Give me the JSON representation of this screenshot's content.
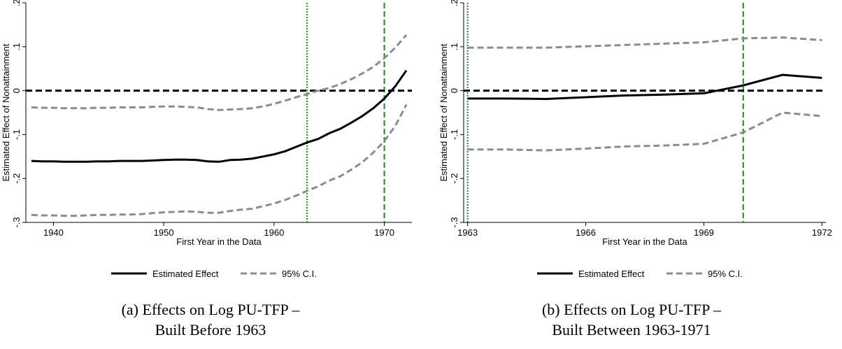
{
  "chart_data": [
    {
      "type": "line",
      "title": "(a) Effects on Log PU-TFP –",
      "subtitle": "Built Before 1963",
      "xlabel": "First Year in the Data",
      "ylabel": "Estimated Effect of Nonattainment",
      "xlim": [
        1937.5,
        1972.5
      ],
      "ylim": [
        -0.3,
        0.2
      ],
      "xticks": [
        1940,
        1950,
        1960,
        1970
      ],
      "xtick_labels": [
        "1940",
        "1950",
        "1960",
        "1970"
      ],
      "yticks": [
        -0.3,
        -0.2,
        -0.1,
        0,
        0.1,
        0.2
      ],
      "ytick_labels": [
        "-.3",
        "-.2",
        "-.1",
        "0",
        ".1",
        ".2"
      ],
      "reference_lines": {
        "horizontal_dashed_black": 0,
        "vertical_dotted_green": 1963,
        "vertical_dashed_green": 1970
      },
      "legend": [
        "Estimated Effect",
        "95% C.I."
      ],
      "legend_position": "bottom",
      "x": [
        1938,
        1939,
        1940,
        1941,
        1942,
        1943,
        1944,
        1945,
        1946,
        1947,
        1948,
        1949,
        1950,
        1951,
        1952,
        1953,
        1954,
        1955,
        1956,
        1957,
        1958,
        1959,
        1960,
        1961,
        1962,
        1963,
        1964,
        1965,
        1966,
        1967,
        1968,
        1969,
        1970,
        1971,
        1972
      ],
      "series": [
        {
          "name": "Estimated Effect",
          "values": [
            -0.16,
            -0.161,
            -0.161,
            -0.162,
            -0.162,
            -0.162,
            -0.161,
            -0.161,
            -0.16,
            -0.16,
            -0.16,
            -0.159,
            -0.158,
            -0.157,
            -0.157,
            -0.158,
            -0.161,
            -0.162,
            -0.158,
            -0.157,
            -0.155,
            -0.15,
            -0.145,
            -0.138,
            -0.128,
            -0.118,
            -0.11,
            -0.097,
            -0.087,
            -0.073,
            -0.058,
            -0.04,
            -0.018,
            0.01,
            0.046
          ]
        },
        {
          "name": "95% C.I.",
          "values": [
            -0.038,
            -0.039,
            -0.039,
            -0.04,
            -0.04,
            -0.04,
            -0.039,
            -0.039,
            -0.038,
            -0.038,
            -0.038,
            -0.037,
            -0.036,
            -0.036,
            -0.037,
            -0.038,
            -0.042,
            -0.044,
            -0.043,
            -0.042,
            -0.04,
            -0.036,
            -0.03,
            -0.023,
            -0.015,
            -0.008,
            0.0,
            0.006,
            0.015,
            0.026,
            0.039,
            0.054,
            0.074,
            0.098,
            0.127
          ]
        },
        {
          "name": "95% C.I. lower",
          "values": [
            -0.283,
            -0.284,
            -0.284,
            -0.285,
            -0.285,
            -0.284,
            -0.283,
            -0.283,
            -0.282,
            -0.282,
            -0.281,
            -0.279,
            -0.277,
            -0.276,
            -0.275,
            -0.276,
            -0.278,
            -0.278,
            -0.274,
            -0.271,
            -0.269,
            -0.263,
            -0.257,
            -0.249,
            -0.239,
            -0.228,
            -0.218,
            -0.205,
            -0.195,
            -0.18,
            -0.163,
            -0.141,
            -0.115,
            -0.08,
            -0.032
          ]
        }
      ]
    },
    {
      "type": "line",
      "title": "(b) Effects on Log PU-TFP –",
      "subtitle": "Built Between 1963-1971",
      "xlabel": "First Year in the Data",
      "ylabel": "Estimated Effect of Nonattainment",
      "xlim": [
        1962.9,
        1972.1
      ],
      "ylim": [
        -0.3,
        0.2
      ],
      "xticks": [
        1963,
        1966,
        1969,
        1972
      ],
      "xtick_labels": [
        "1963",
        "1966",
        "1969",
        "1972"
      ],
      "yticks": [
        -0.3,
        -0.2,
        -0.1,
        0,
        0.1,
        0.2
      ],
      "ytick_labels": [
        "-.3",
        "-.2",
        "-.1",
        "0",
        ".1",
        ".2"
      ],
      "reference_lines": {
        "horizontal_dashed_black": 0,
        "vertical_dotted_green": 1963,
        "vertical_dashed_green": 1970
      },
      "legend": [
        "Estimated Effect",
        "95% C.I."
      ],
      "legend_position": "bottom",
      "x": [
        1963,
        1964,
        1965,
        1966,
        1967,
        1968,
        1969,
        1970,
        1971,
        1972
      ],
      "series": [
        {
          "name": "Estimated Effect",
          "values": [
            -0.018,
            -0.018,
            -0.019,
            -0.015,
            -0.011,
            -0.009,
            -0.006,
            0.012,
            0.036,
            0.029
          ]
        },
        {
          "name": "95% C.I.",
          "values": [
            0.098,
            0.098,
            0.098,
            0.101,
            0.104,
            0.107,
            0.11,
            0.119,
            0.121,
            0.115
          ]
        },
        {
          "name": "95% C.I. lower",
          "values": [
            -0.134,
            -0.134,
            -0.136,
            -0.132,
            -0.127,
            -0.125,
            -0.121,
            -0.095,
            -0.05,
            -0.058
          ]
        }
      ]
    }
  ],
  "colors": {
    "estimate": "#000000",
    "ci": "#8c8c8c",
    "zero_line": "#000000",
    "vline_dotted": "#1a8a1a",
    "vline_dashed": "#1a8a1a"
  }
}
